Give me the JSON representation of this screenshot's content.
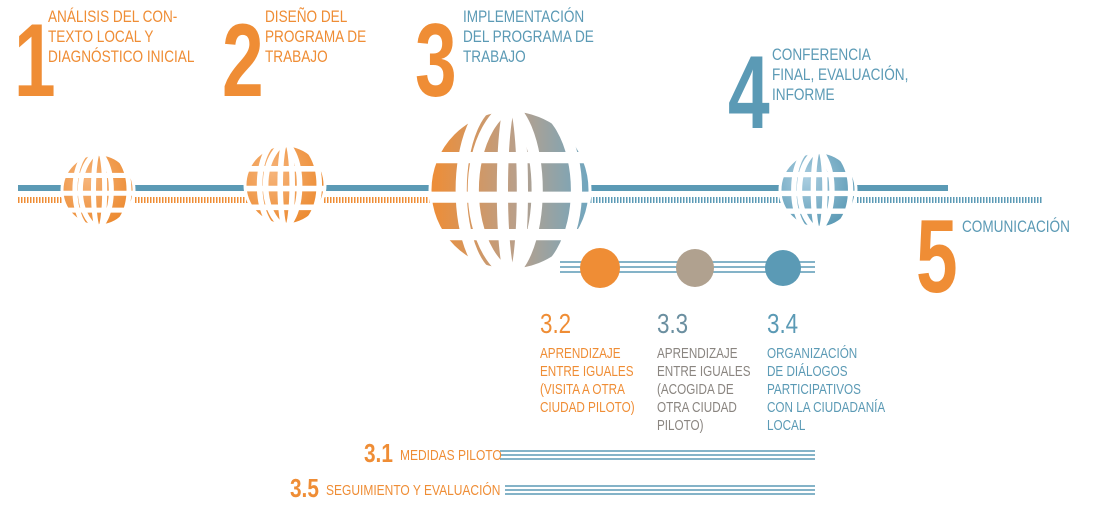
{
  "steps": [
    {
      "number": "1",
      "lines": [
        "ANÁLISIS DEL CON-",
        "TEXTO LOCAL Y",
        "DIAGNÓSTICO INICIAL"
      ]
    },
    {
      "number": "2",
      "lines": [
        "DISEÑO DEL",
        "PROGRAMA DE",
        "TRABAJO"
      ]
    },
    {
      "number": "3",
      "lines": [
        "IMPLEMENTACIÓN",
        "DEL PROGRAMA DE",
        "TRABAJO"
      ]
    },
    {
      "number": "4",
      "lines": [
        "CONFERENCIA",
        "FINAL, EVALUACIÓN,",
        "INFORME"
      ]
    },
    {
      "number": "5",
      "lines": [
        "COMUNICACIÓN"
      ]
    }
  ],
  "substeps": [
    {
      "number": "3.2",
      "lines": [
        "APRENDIZAJE",
        "ENTRE IGUALES",
        "(VISITA A OTRA",
        "CIUDAD PILOTO)"
      ]
    },
    {
      "number": "3.3",
      "lines": [
        "APRENDIZAJE",
        "ENTRE IGUALES",
        "(ACOGIDA DE",
        "OTRA CIUDAD",
        "PILOTO)"
      ]
    },
    {
      "number": "3.4",
      "lines": [
        "ORGANIZACIÓN",
        "DE DIÁLOGOS",
        "PARTICIPATIVOS",
        "CON LA CIUDADANÍA",
        "LOCAL"
      ]
    }
  ],
  "bottom": [
    {
      "number": "3.1",
      "label": "MEDIDAS PILOTO"
    },
    {
      "number": "3.5",
      "label": "SEGUIMIENTO Y EVALUACIÓN"
    }
  ]
}
